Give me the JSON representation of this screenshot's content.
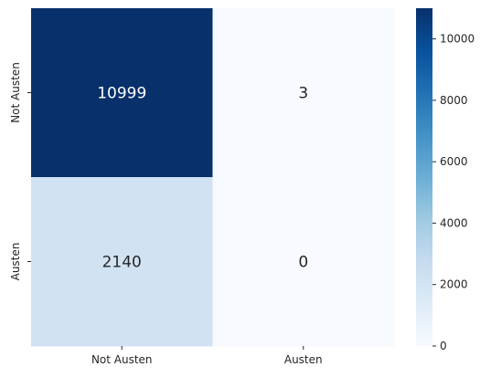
{
  "chart_data": {
    "type": "heatmap",
    "title": "",
    "xlabel": "",
    "ylabel": "",
    "x_categories": [
      "Not Austen",
      "Austen"
    ],
    "y_categories": [
      "Not Austen",
      "Austen"
    ],
    "values": [
      [
        10999,
        3
      ],
      [
        2140,
        0
      ]
    ],
    "colormap": "Blues",
    "colormap_stops": [
      "#f7fbff",
      "#deebf7",
      "#c6dbef",
      "#9ecae1",
      "#6baed6",
      "#4292c6",
      "#2171b5",
      "#08519c",
      "#08306b"
    ],
    "annotations": true,
    "colorbar": {
      "range": [
        0,
        10999
      ],
      "ticks": [
        0,
        2000,
        4000,
        6000,
        8000,
        10000
      ]
    }
  }
}
